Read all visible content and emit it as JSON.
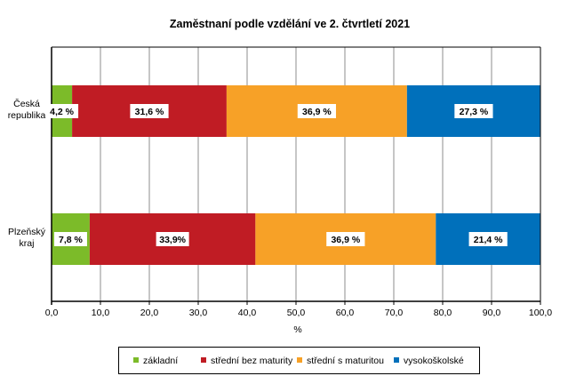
{
  "chart_data": {
    "type": "bar",
    "orientation": "horizontal",
    "stacked": true,
    "title": "Zaměstnaní podle vzdělání ve 2. čtvrtletí 2021",
    "xlabel": "%",
    "ylabel": "",
    "xlim": [
      0,
      100
    ],
    "grid": true,
    "legend_position": "bottom",
    "categories": [
      {
        "lines": [
          "Česká",
          "republika"
        ]
      },
      {
        "lines": [
          "Plzeňský",
          "kraj"
        ]
      }
    ],
    "x_ticks": [
      "0,0",
      "10,0",
      "20,0",
      "30,0",
      "40,0",
      "50,0",
      "60,0",
      "70,0",
      "80,0",
      "90,0",
      "100,0"
    ],
    "x_tick_values": [
      0,
      10,
      20,
      30,
      40,
      50,
      60,
      70,
      80,
      90,
      100
    ],
    "series": [
      {
        "name": "základní",
        "color": "#7cbb29",
        "values": [
          4.2,
          7.8
        ],
        "labels": [
          "4,2 %",
          "7,8 %"
        ]
      },
      {
        "name": "střední bez maturity",
        "color": "#c01c24",
        "values": [
          31.6,
          33.9
        ],
        "labels": [
          "31,6 %",
          "33,9%"
        ]
      },
      {
        "name": "střední s maturitou",
        "color": "#f7a127",
        "values": [
          36.9,
          36.9
        ],
        "labels": [
          "36,9 %",
          "36,9 %"
        ]
      },
      {
        "name": "vysokoškolské",
        "color": "#0070bb",
        "values": [
          27.3,
          21.4
        ],
        "labels": [
          "27,3 %",
          "21,4 %"
        ]
      }
    ]
  }
}
